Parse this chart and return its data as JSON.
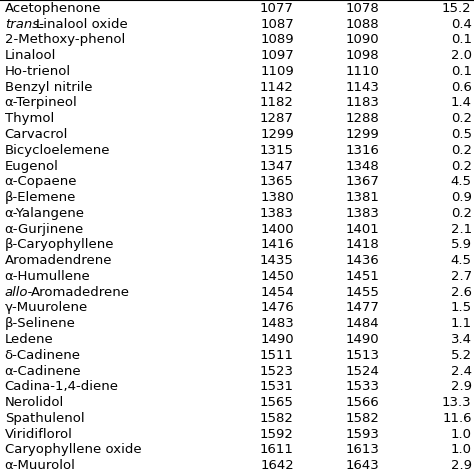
{
  "rows": [
    [
      "Acetophenone",
      "1077",
      "1078",
      "15.2"
    ],
    [
      "trans-Linalool oxide",
      "1087",
      "1088",
      "0.4"
    ],
    [
      "2-Methoxy-phenol",
      "1089",
      "1090",
      "0.1"
    ],
    [
      "Linalool",
      "1097",
      "1098",
      "2.0"
    ],
    [
      "Ho-trienol",
      "1109",
      "1110",
      "0.1"
    ],
    [
      "Benzyl nitrile",
      "1142",
      "1143",
      "0.6"
    ],
    [
      "α-Terpineol",
      "1182",
      "1183",
      "1.4"
    ],
    [
      "Thymol",
      "1287",
      "1288",
      "0.2"
    ],
    [
      "Carvacrol",
      "1299",
      "1299",
      "0.5"
    ],
    [
      "Bicycloelemene",
      "1315",
      "1316",
      "0.2"
    ],
    [
      "Eugenol",
      "1347",
      "1348",
      "0.2"
    ],
    [
      "α-Copaene",
      "1365",
      "1367",
      "4.5"
    ],
    [
      "β-Elemene",
      "1380",
      "1381",
      "0.9"
    ],
    [
      "α-Yalangene",
      "1383",
      "1383",
      "0.2"
    ],
    [
      "α-Gurjinene",
      "1400",
      "1401",
      "2.1"
    ],
    [
      "β-Caryophyllene",
      "1416",
      "1418",
      "5.9"
    ],
    [
      "Aromadendrene",
      "1435",
      "1436",
      "4.5"
    ],
    [
      "α-Humullene",
      "1450",
      "1451",
      "2.7"
    ],
    [
      "allo-Aromadedrene",
      "1454",
      "1455",
      "2.6"
    ],
    [
      "γ-Muurolene",
      "1476",
      "1477",
      "1.5"
    ],
    [
      "β-Selinene",
      "1483",
      "1484",
      "1.1"
    ],
    [
      "Ledene",
      "1490",
      "1490",
      "3.4"
    ],
    [
      "δ-Cadinene",
      "1511",
      "1513",
      "5.2"
    ],
    [
      "α-Cadinene",
      "1523",
      "1524",
      "2.4"
    ],
    [
      "Cadina-1,4-diene",
      "1531",
      "1533",
      "2.9"
    ],
    [
      "Nerolidol",
      "1565",
      "1566",
      "13.3"
    ],
    [
      "Spathulenol",
      "1582",
      "1582",
      "11.6"
    ],
    [
      "Viridiflorol",
      "1592",
      "1593",
      "1.0"
    ],
    [
      "Caryophyllene oxide",
      "1611",
      "1613",
      "1.0"
    ],
    [
      "α-Muurolol",
      "1642",
      "1643",
      "2.9"
    ]
  ],
  "bg_color": "#ffffff",
  "text_color": "#000000",
  "font_size": 9.5
}
